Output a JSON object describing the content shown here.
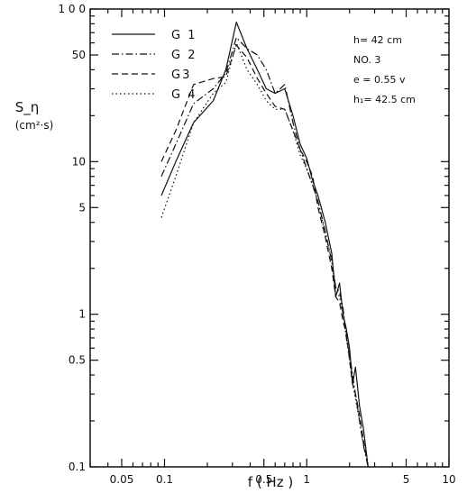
{
  "chart_data": {
    "type": "line",
    "title": "",
    "xlabel": "f ( Hz )",
    "ylabel": "S_η",
    "ylabel_unit": "(cm²·s)",
    "x_scale": "log",
    "y_scale": "log",
    "xlim": [
      0.03,
      10
    ],
    "ylim": [
      0.1,
      100
    ],
    "grid": false,
    "legend_position": "top-left",
    "x_ticks": [
      {
        "value": 0.05,
        "label": "0.05"
      },
      {
        "value": 0.1,
        "label": "0.1"
      },
      {
        "value": 0.5,
        "label": "0.5"
      },
      {
        "value": 1,
        "label": "1"
      },
      {
        "value": 5,
        "label": "5"
      },
      {
        "value": 10,
        "label": "10"
      }
    ],
    "y_ticks": [
      {
        "value": 0.1,
        "label": "0.1"
      },
      {
        "value": 0.5,
        "label": "0.5"
      },
      {
        "value": 1,
        "label": "1"
      },
      {
        "value": 5,
        "label": "5"
      },
      {
        "value": 10,
        "label": "10"
      },
      {
        "value": 50,
        "label": "50"
      },
      {
        "value": 100,
        "label": "1 0 0"
      }
    ],
    "annotations": [
      "h= 42 cm",
      "NO. 3",
      "e = 0.55 v",
      "h₁= 42.5 cm"
    ],
    "series": [
      {
        "name": "G 1",
        "dash": "solid",
        "points": [
          [
            0.095,
            6
          ],
          [
            0.12,
            10
          ],
          [
            0.16,
            18
          ],
          [
            0.22,
            25
          ],
          [
            0.27,
            40
          ],
          [
            0.32,
            82
          ],
          [
            0.38,
            55
          ],
          [
            0.45,
            40
          ],
          [
            0.52,
            30
          ],
          [
            0.6,
            28
          ],
          [
            0.7,
            30
          ],
          [
            0.8,
            20
          ],
          [
            0.9,
            13
          ],
          [
            1.0,
            10.5
          ],
          [
            1.1,
            7.5
          ],
          [
            1.2,
            6
          ],
          [
            1.35,
            4
          ],
          [
            1.5,
            2.5
          ],
          [
            1.6,
            1.3
          ],
          [
            1.7,
            1.6
          ],
          [
            1.8,
            1
          ],
          [
            1.9,
            0.8
          ],
          [
            2.0,
            0.6
          ],
          [
            2.1,
            0.35
          ],
          [
            2.2,
            0.45
          ],
          [
            2.35,
            0.25
          ],
          [
            2.5,
            0.18
          ],
          [
            2.7,
            0.1
          ]
        ]
      },
      {
        "name": "G 2",
        "dash": "dashdot",
        "points": [
          [
            0.095,
            8
          ],
          [
            0.12,
            13
          ],
          [
            0.16,
            24
          ],
          [
            0.22,
            30
          ],
          [
            0.27,
            38
          ],
          [
            0.32,
            65
          ],
          [
            0.38,
            55
          ],
          [
            0.45,
            50
          ],
          [
            0.52,
            40
          ],
          [
            0.6,
            28
          ],
          [
            0.7,
            32
          ],
          [
            0.8,
            18
          ],
          [
            0.9,
            12
          ],
          [
            1.0,
            9
          ],
          [
            1.1,
            7
          ],
          [
            1.2,
            5.5
          ],
          [
            1.35,
            3.5
          ],
          [
            1.5,
            2.2
          ],
          [
            1.6,
            1.5
          ],
          [
            1.7,
            1.4
          ],
          [
            1.8,
            1.1
          ],
          [
            1.9,
            0.7
          ],
          [
            2.0,
            0.55
          ],
          [
            2.1,
            0.4
          ],
          [
            2.2,
            0.3
          ],
          [
            2.35,
            0.2
          ],
          [
            2.5,
            0.14
          ],
          [
            2.7,
            0.1
          ]
        ]
      },
      {
        "name": "G3",
        "dash": "dashed",
        "points": [
          [
            0.095,
            10
          ],
          [
            0.12,
            16
          ],
          [
            0.16,
            32
          ],
          [
            0.22,
            35
          ],
          [
            0.27,
            36
          ],
          [
            0.32,
            58
          ],
          [
            0.38,
            48
          ],
          [
            0.45,
            35
          ],
          [
            0.52,
            28
          ],
          [
            0.6,
            23
          ],
          [
            0.7,
            22
          ],
          [
            0.8,
            16
          ],
          [
            0.9,
            12
          ],
          [
            1.0,
            10
          ],
          [
            1.1,
            8
          ],
          [
            1.2,
            5
          ],
          [
            1.35,
            3.2
          ],
          [
            1.5,
            2
          ],
          [
            1.6,
            1.3
          ],
          [
            1.7,
            1.2
          ],
          [
            1.8,
            0.9
          ],
          [
            1.9,
            0.75
          ],
          [
            2.0,
            0.5
          ],
          [
            2.1,
            0.35
          ],
          [
            2.2,
            0.3
          ],
          [
            2.35,
            0.22
          ],
          [
            2.5,
            0.15
          ],
          [
            2.7,
            0.1
          ]
        ]
      },
      {
        "name": "G 4",
        "dash": "dotted",
        "points": [
          [
            0.095,
            4.3
          ],
          [
            0.12,
            8
          ],
          [
            0.16,
            18
          ],
          [
            0.22,
            28
          ],
          [
            0.27,
            33
          ],
          [
            0.32,
            60
          ],
          [
            0.38,
            40
          ],
          [
            0.45,
            32
          ],
          [
            0.52,
            25
          ],
          [
            0.6,
            22
          ],
          [
            0.7,
            22
          ],
          [
            0.8,
            16
          ],
          [
            0.9,
            11
          ],
          [
            1.0,
            9
          ],
          [
            1.1,
            7
          ],
          [
            1.2,
            5.5
          ],
          [
            1.35,
            3.3
          ],
          [
            1.5,
            2.3
          ],
          [
            1.6,
            1.5
          ],
          [
            1.7,
            1.3
          ],
          [
            1.8,
            1
          ],
          [
            1.9,
            0.7
          ],
          [
            2.0,
            0.5
          ],
          [
            2.1,
            0.35
          ],
          [
            2.2,
            0.28
          ],
          [
            2.35,
            0.2
          ],
          [
            2.5,
            0.14
          ],
          [
            2.7,
            0.1
          ]
        ]
      }
    ]
  }
}
